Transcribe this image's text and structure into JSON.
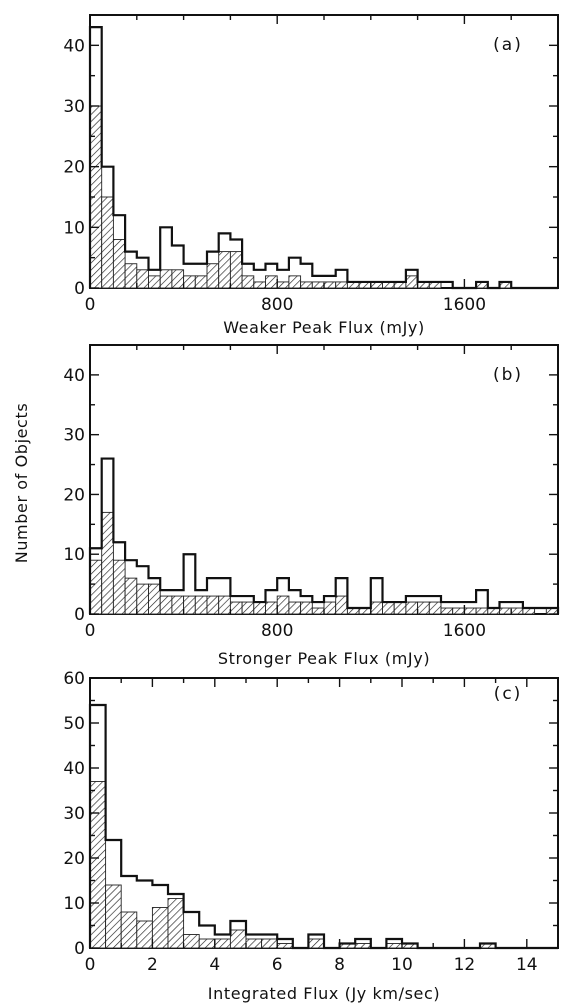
{
  "ylabel": "Number of Objects",
  "chart_data": [
    {
      "type": "bar",
      "panel_label": "(a)",
      "xlabel": "Weaker Peak Flux (mJy)",
      "xlim": [
        0,
        2000
      ],
      "ylim": [
        0,
        45
      ],
      "xticks": [
        0,
        800,
        1600
      ],
      "yticks": [
        0,
        10,
        20,
        30,
        40
      ],
      "bin_width": 50,
      "series": [
        {
          "name": "total",
          "values": [
            43,
            20,
            12,
            6,
            5,
            3,
            10,
            7,
            4,
            4,
            6,
            9,
            8,
            4,
            3,
            4,
            3,
            5,
            4,
            2,
            2,
            3,
            1,
            1,
            1,
            1,
            1,
            3,
            1,
            1,
            1,
            0,
            0,
            1,
            0,
            1,
            0,
            0,
            0,
            0
          ]
        },
        {
          "name": "hatched",
          "values": [
            30,
            15,
            8,
            4,
            3,
            2,
            3,
            3,
            2,
            2,
            4,
            6,
            6,
            2,
            1,
            2,
            1,
            2,
            1,
            1,
            1,
            1,
            1,
            1,
            1,
            1,
            1,
            2,
            1,
            1,
            0,
            0,
            0,
            1,
            0,
            1,
            0,
            0,
            0,
            0
          ]
        }
      ]
    },
    {
      "type": "bar",
      "panel_label": "(b)",
      "xlabel": "Stronger Peak Flux (mJy)",
      "xlim": [
        0,
        2000
      ],
      "ylim": [
        0,
        45
      ],
      "xticks": [
        0,
        800,
        1600
      ],
      "yticks": [
        0,
        10,
        20,
        30,
        40
      ],
      "bin_width": 50,
      "series": [
        {
          "name": "total",
          "values": [
            11,
            26,
            12,
            9,
            8,
            6,
            4,
            4,
            10,
            4,
            6,
            6,
            3,
            3,
            2,
            4,
            6,
            4,
            3,
            2,
            3,
            6,
            1,
            1,
            6,
            2,
            2,
            3,
            3,
            3,
            2,
            2,
            2,
            4,
            1,
            2,
            2,
            1,
            1,
            1
          ]
        },
        {
          "name": "hatched",
          "values": [
            9,
            17,
            9,
            6,
            5,
            5,
            3,
            3,
            3,
            3,
            3,
            3,
            2,
            2,
            2,
            2,
            3,
            2,
            2,
            1,
            2,
            3,
            1,
            1,
            2,
            2,
            2,
            2,
            2,
            2,
            1,
            1,
            1,
            1,
            1,
            1,
            1,
            1,
            0,
            1
          ]
        }
      ]
    },
    {
      "type": "bar",
      "panel_label": "(c)",
      "xlabel": "Integrated Flux (Jy km/sec)",
      "xlim": [
        0,
        15
      ],
      "ylim": [
        0,
        60
      ],
      "xticks": [
        0,
        2,
        4,
        6,
        8,
        10,
        12,
        14
      ],
      "yticks": [
        0,
        10,
        20,
        30,
        40,
        50,
        60
      ],
      "bin_width": 0.5,
      "series": [
        {
          "name": "total",
          "values": [
            54,
            24,
            16,
            15,
            14,
            12,
            8,
            5,
            3,
            6,
            3,
            3,
            2,
            0,
            3,
            0,
            1,
            2,
            0,
            2,
            1,
            0,
            0,
            0,
            0,
            1,
            0,
            0,
            0,
            0
          ]
        },
        {
          "name": "hatched",
          "values": [
            37,
            14,
            8,
            6,
            9,
            11,
            3,
            2,
            2,
            4,
            2,
            2,
            1,
            0,
            2,
            0,
            1,
            1,
            0,
            1,
            1,
            0,
            0,
            0,
            0,
            1,
            0,
            0,
            0,
            0
          ]
        }
      ]
    }
  ]
}
